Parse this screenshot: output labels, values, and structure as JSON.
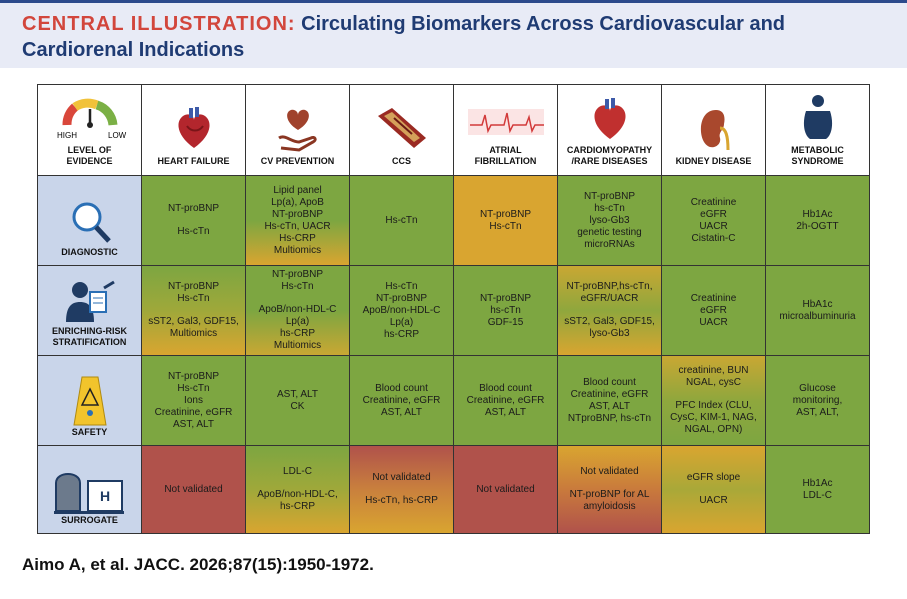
{
  "header": {
    "label": "CENTRAL ILLUSTRATION:",
    "title": "Circulating Biomarkers Across Cardiovascular and Cardiorenal Indications"
  },
  "table": {
    "corner": {
      "high": "HIGH",
      "low": "LOW",
      "label": "LEVEL OF EVIDENCE"
    },
    "columns": [
      "HEART FAILURE",
      "CV PREVENTION",
      "CCS",
      "ATRIAL FIBRILLATION",
      "CARDIOMYOPATHY /RARE DISEASES",
      "KIDNEY DISEASE",
      "METABOLIC SYNDROME"
    ],
    "rows": [
      {
        "label": "DIAGNOSTIC",
        "cells": [
          {
            "colors": [
              "#7da641"
            ],
            "groups": [
              [
                "NT-proBNP"
              ],
              [
                "Hs-cTn"
              ]
            ]
          },
          {
            "colors": [
              "#7da641",
              "#7da641",
              "#d9a530"
            ],
            "groups": [
              [
                "Lipid panel",
                "Lp(a), ApoB",
                "NT-proBNP",
                "Hs-cTn, UACR",
                "Hs-CRP",
                "Multiomics"
              ]
            ]
          },
          {
            "colors": [
              "#7da641"
            ],
            "groups": [
              [
                "Hs-cTn"
              ]
            ]
          },
          {
            "colors": [
              "#d9a530"
            ],
            "groups": [
              [
                "NT-proBNP",
                "Hs-cTn"
              ]
            ]
          },
          {
            "colors": [
              "#7da641"
            ],
            "groups": [
              [
                "NT-proBNP",
                "hs-cTn",
                "lyso-Gb3",
                "genetic testing",
                "microRNAs"
              ]
            ]
          },
          {
            "colors": [
              "#7da641"
            ],
            "groups": [
              [
                "Creatinine",
                "eGFR",
                "UACR",
                "Cistatin-C"
              ]
            ]
          },
          {
            "colors": [
              "#7da641"
            ],
            "groups": [
              [
                "Hb1Ac",
                "2h-OGTT"
              ]
            ]
          }
        ]
      },
      {
        "label": "ENRICHING-RISK STRATIFICATION",
        "cells": [
          {
            "colors": [
              "#7da641",
              "#9fa83a",
              "#d9a530"
            ],
            "groups": [
              [
                "NT-proBNP",
                "Hs-cTn"
              ],
              [
                "sST2, Gal3, GDF15,",
                "Multiomics"
              ]
            ]
          },
          {
            "colors": [
              "#7da641",
              "#7da641",
              "#c9a733"
            ],
            "groups": [
              [
                "NT-proBNP",
                "Hs-cTn"
              ],
              [
                "ApoB/non-HDL-C",
                "Lp(a)",
                "hs-CRP",
                "Multiomics"
              ]
            ]
          },
          {
            "colors": [
              "#7da641"
            ],
            "groups": [
              [
                "Hs-cTn",
                "NT-proBNP",
                "ApoB/non-HDL-C",
                "Lp(a)",
                "hs-CRP"
              ]
            ]
          },
          {
            "colors": [
              "#7da641"
            ],
            "groups": [
              [
                "NT-proBNP",
                "hs-cTn",
                "GDF-15"
              ]
            ]
          },
          {
            "colors": [
              "#c9a733",
              "#8fa73d",
              "#d9a530"
            ],
            "groups": [
              [
                "NT-proBNP,hs-cTn,",
                "eGFR/UACR"
              ],
              [
                "sST2, Gal3, GDF15,",
                "lyso-Gb3"
              ]
            ]
          },
          {
            "colors": [
              "#7da641"
            ],
            "groups": [
              [
                "Creatinine",
                "eGFR",
                "UACR"
              ]
            ]
          },
          {
            "colors": [
              "#7da641"
            ],
            "groups": [
              [
                "HbA1c",
                "microalbuminuria"
              ]
            ]
          }
        ]
      },
      {
        "label": "SAFETY",
        "cells": [
          {
            "colors": [
              "#7da641"
            ],
            "groups": [
              [
                "NT-proBNP",
                "Hs-cTn",
                "Ions",
                "Creatinine, eGFR",
                "AST, ALT"
              ]
            ]
          },
          {
            "colors": [
              "#7da641"
            ],
            "groups": [
              [
                "AST, ALT",
                "CK"
              ]
            ]
          },
          {
            "colors": [
              "#7da641"
            ],
            "groups": [
              [
                "Blood count",
                "Creatinine, eGFR",
                "AST, ALT"
              ]
            ]
          },
          {
            "colors": [
              "#7da641"
            ],
            "groups": [
              [
                "Blood count",
                "Creatinine, eGFR",
                "AST, ALT"
              ]
            ]
          },
          {
            "colors": [
              "#7da641"
            ],
            "groups": [
              [
                "Blood count",
                "Creatinine, eGFR",
                "AST, ALT",
                "NTproBNP, hs-cTn"
              ]
            ]
          },
          {
            "colors": [
              "#c9a733",
              "#8fa73d",
              "#7da641"
            ],
            "groups": [
              [
                "creatinine, BUN",
                "NGAL, cysC"
              ],
              [
                "PFC Index (CLU,",
                "CysC, KIM-1, NAG,",
                "NGAL, OPN)"
              ]
            ]
          },
          {
            "colors": [
              "#7da641"
            ],
            "groups": [
              [
                "Glucose",
                "monitoring,",
                "AST, ALT,"
              ]
            ]
          }
        ]
      },
      {
        "label": "SURROGATE",
        "cells": [
          {
            "colors": [
              "#b0524b"
            ],
            "groups": [
              [
                "Not validated"
              ]
            ]
          },
          {
            "colors": [
              "#7da641",
              "#9fa83a",
              "#d9a530"
            ],
            "groups": [
              [
                "LDL-C"
              ],
              [
                "ApoB/non-HDL-C,",
                "hs-CRP"
              ]
            ]
          },
          {
            "colors": [
              "#b0524b",
              "#c9803d",
              "#d9a530"
            ],
            "groups": [
              [
                "Not validated"
              ],
              [
                "Hs-cTn, hs-CRP"
              ]
            ]
          },
          {
            "colors": [
              "#b0524b"
            ],
            "groups": [
              [
                "Not validated"
              ]
            ]
          },
          {
            "colors": [
              "#d9a530",
              "#c97a3c",
              "#b0524b"
            ],
            "groups": [
              [
                "Not validated"
              ],
              [
                "NT-proBNP for AL",
                "amyloidosis"
              ]
            ]
          },
          {
            "colors": [
              "#d9a530",
              "#a9a838",
              "#d9a530"
            ],
            "groups": [
              [
                "eGFR slope"
              ],
              [
                "UACR"
              ]
            ]
          },
          {
            "colors": [
              "#7da641"
            ],
            "groups": [
              [
                "Hb1Ac",
                "LDL-C"
              ]
            ]
          }
        ]
      }
    ]
  },
  "citation": "Aimo A, et al. JACC. 2026;87(15):1950-1972."
}
